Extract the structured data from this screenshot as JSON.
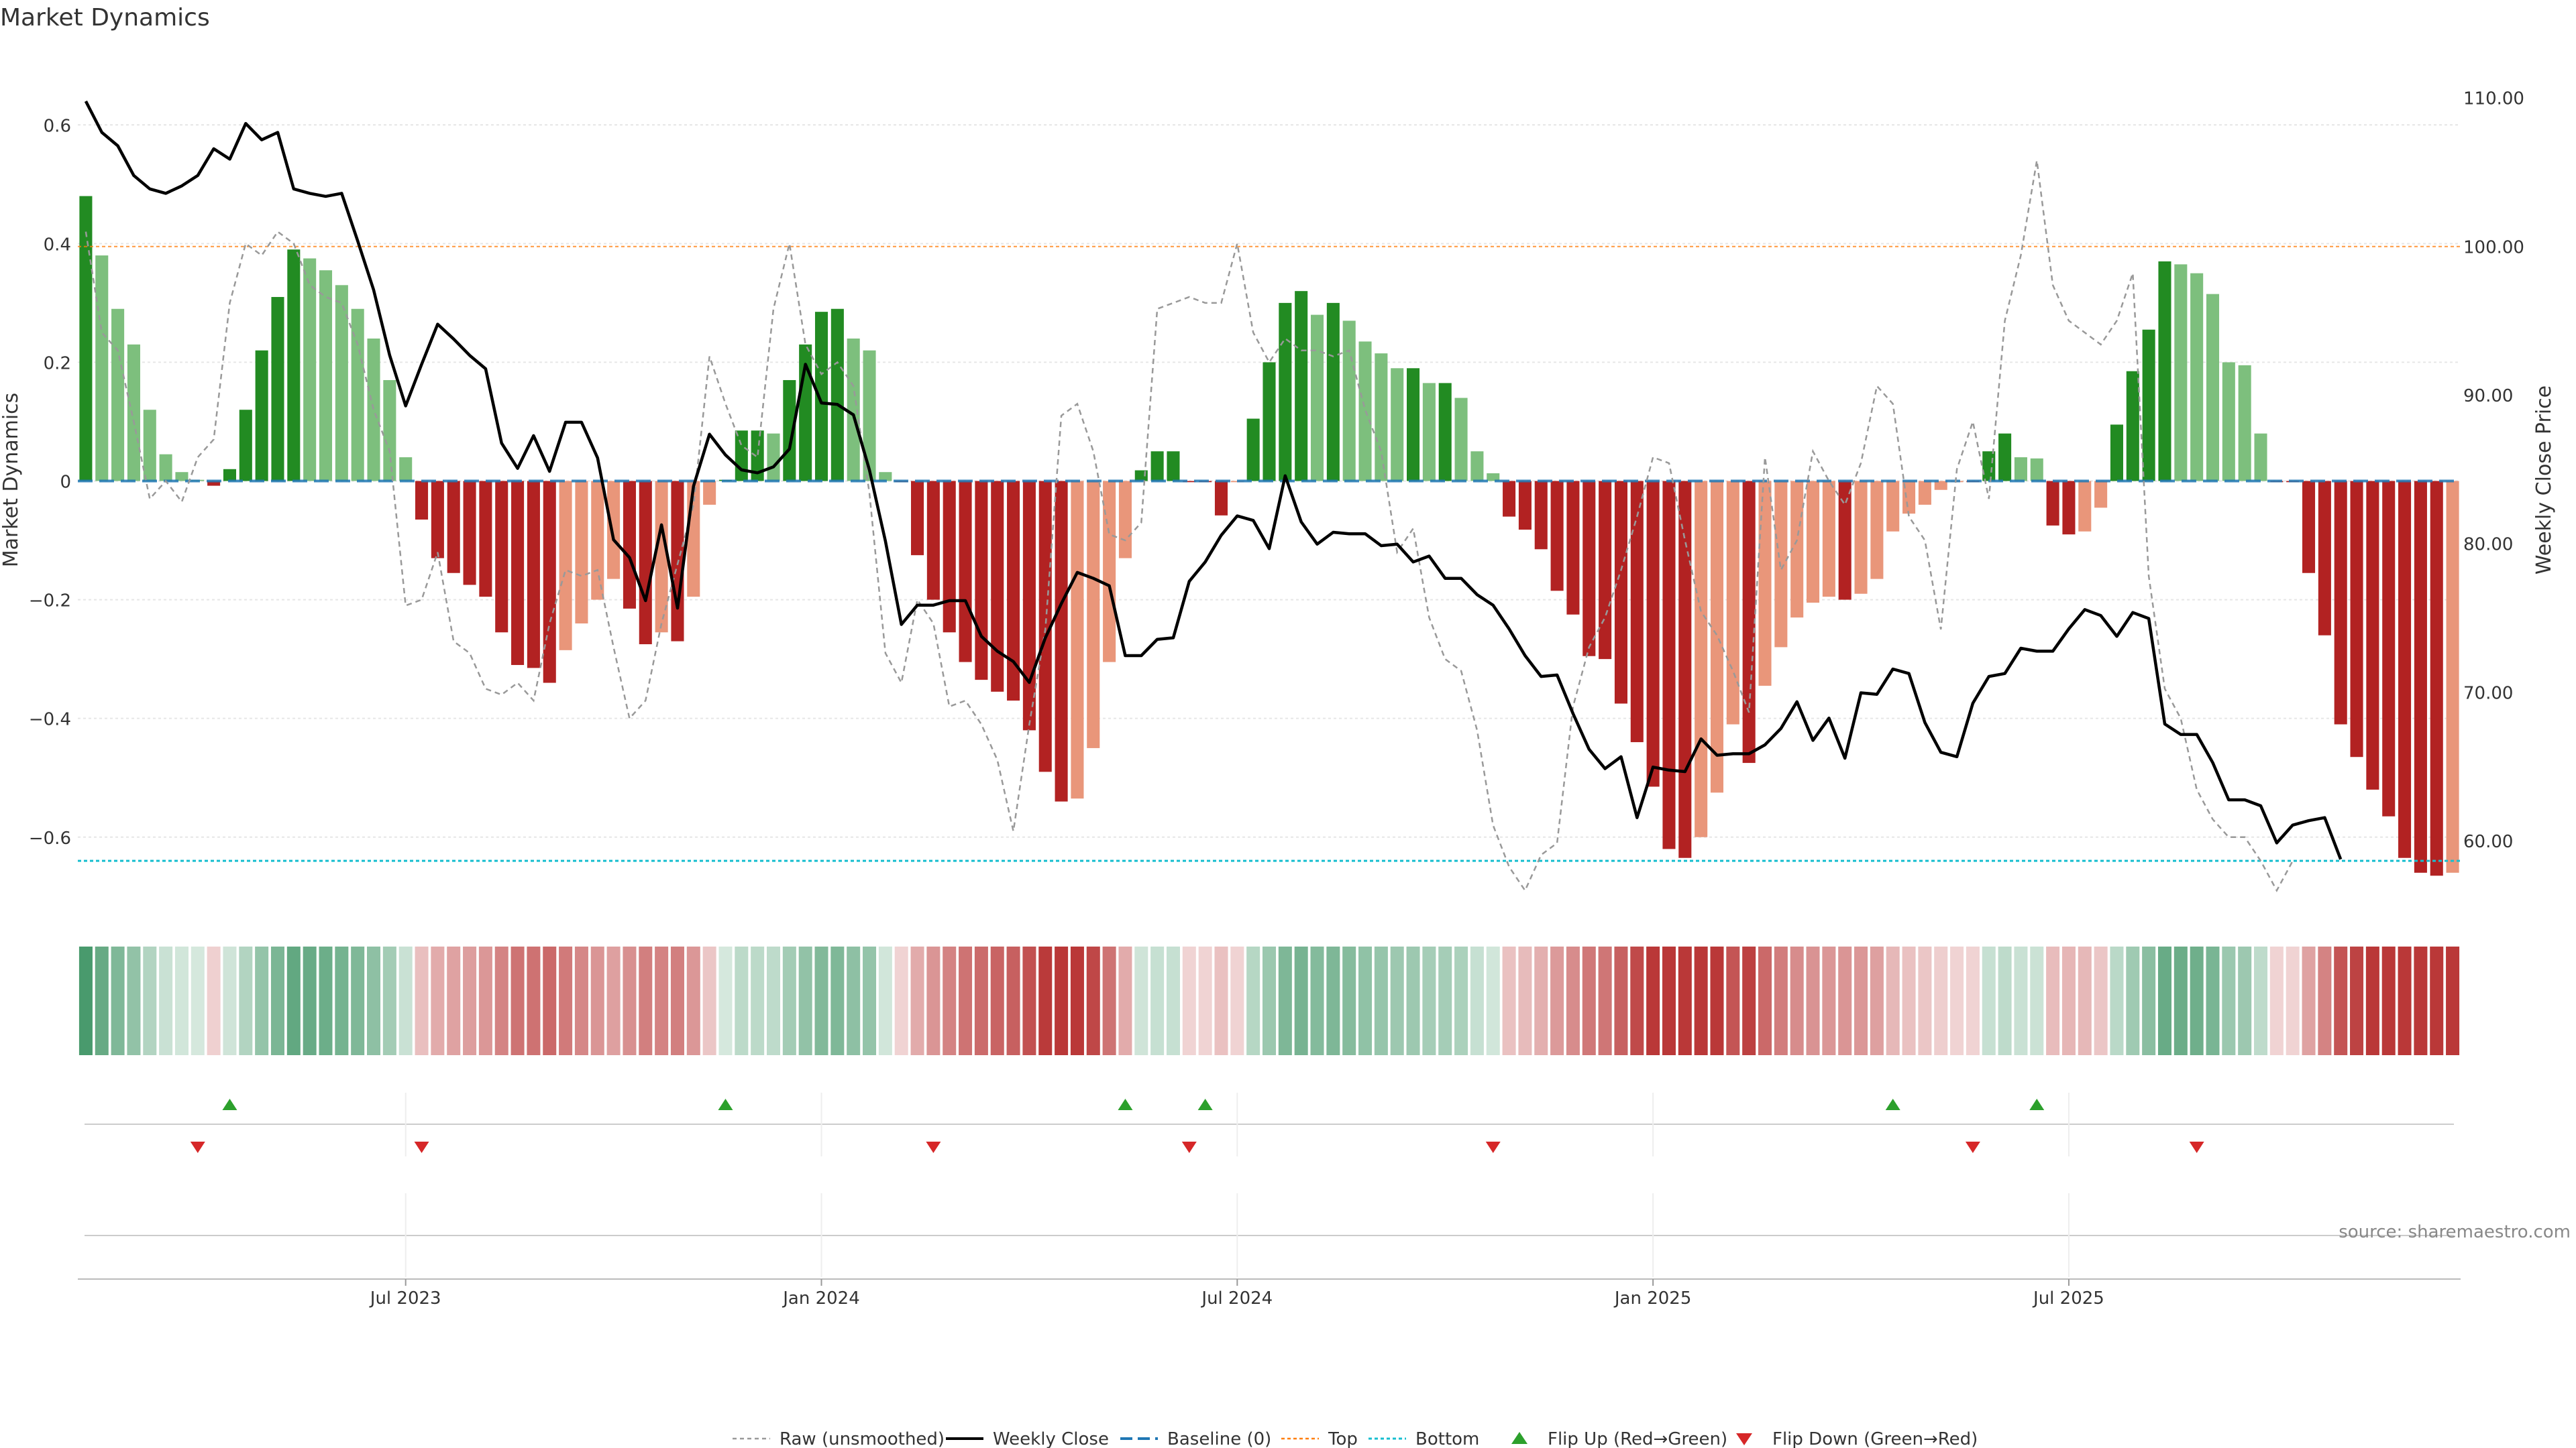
{
  "title": "Market Dynamics",
  "source": "source: sharemaestro.com",
  "chart_data": {
    "type": "bar",
    "title": "Market Dynamics",
    "ylabel": "Market Dynamics",
    "y2label": "Weekly Close Price",
    "ylim": [
      -0.72,
      0.72
    ],
    "y2lim": [
      55.5,
      113.0
    ],
    "yticks": [
      {
        "value": 0.6,
        "label": "0.6"
      },
      {
        "value": 0.4,
        "label": "0.4"
      },
      {
        "value": 0.2,
        "label": "0.2"
      },
      {
        "value": 0,
        "label": "0"
      },
      {
        "value": -0.2,
        "label": "−0.2"
      },
      {
        "value": -0.4,
        "label": "−0.4"
      },
      {
        "value": -0.6,
        "label": "−0.6"
      }
    ],
    "y2ticks": [
      {
        "value": 110,
        "label": "110.00"
      },
      {
        "value": 100,
        "label": "100.00"
      },
      {
        "value": 90,
        "label": "90.00"
      },
      {
        "value": 80,
        "label": "80.00"
      },
      {
        "value": 70,
        "label": "70.00"
      },
      {
        "value": 60,
        "label": "60.00"
      }
    ],
    "xticks": [
      {
        "week": 20,
        "label": "Jul 2023"
      },
      {
        "week": 46,
        "label": "Jan 2024"
      },
      {
        "week": 72,
        "label": "Jul 2024"
      },
      {
        "week": 98,
        "label": "Jan 2025"
      },
      {
        "week": 124,
        "label": "Jul 2025"
      }
    ],
    "top": 0.395,
    "bottom": -0.64,
    "baseline": 0,
    "colors": {
      "pos_strong": "#228b22",
      "pos_weak": "#7dbf7d",
      "neg_strong": "#b22222",
      "neg_weak": "#e9967a",
      "close": "#000000",
      "raw": "#999999",
      "baseline": "#1f77b4",
      "top": "#ff7f0e",
      "bottom": "#17becf",
      "flip_up": "#2ca02c",
      "flip_down": "#d62728",
      "heat_pos": "#2e8b57",
      "heat_neg": "#b22222"
    },
    "series": [
      {
        "name": "Market Dynamics",
        "values": [
          0.48,
          0.38,
          0.29,
          0.23,
          0.12,
          0.045,
          0.015,
          0.002,
          -0.008,
          0.02,
          0.12,
          0.22,
          0.31,
          0.39,
          0.375,
          0.355,
          0.33,
          0.29,
          0.24,
          0.17,
          0.04,
          -0.065,
          -0.13,
          -0.155,
          -0.175,
          -0.195,
          -0.255,
          -0.31,
          -0.315,
          -0.34,
          -0.285,
          -0.24,
          -0.2,
          -0.165,
          -0.215,
          -0.275,
          -0.255,
          -0.27,
          -0.195,
          -0.04,
          0.002,
          0.085,
          0.085,
          0.08,
          0.17,
          0.23,
          0.285,
          0.29,
          0.24,
          0.22,
          0.015,
          -0.002,
          -0.125,
          -0.2,
          -0.255,
          -0.305,
          -0.335,
          -0.355,
          -0.37,
          -0.42,
          -0.49,
          -0.54,
          -0.535,
          -0.45,
          -0.305,
          -0.13,
          0.018,
          0.05,
          0.05,
          -0.002,
          -0.002,
          -0.058,
          -0.002,
          0.105,
          0.2,
          0.3,
          0.32,
          0.28,
          0.3,
          0.27,
          0.235,
          0.215,
          0.19,
          0.19,
          0.165,
          0.165,
          0.14,
          0.05,
          0.013,
          -0.06,
          -0.082,
          -0.115,
          -0.185,
          -0.225,
          -0.295,
          -0.3,
          -0.375,
          -0.44,
          -0.515,
          -0.62,
          -0.635,
          -0.6,
          -0.525,
          -0.41,
          -0.475,
          -0.345,
          -0.28,
          -0.23,
          -0.205,
          -0.195,
          -0.2,
          -0.19,
          -0.165,
          -0.085,
          -0.055,
          -0.04,
          -0.015,
          -0.002,
          -0.002,
          0.05,
          0.08,
          0.04,
          0.038,
          -0.075,
          -0.09,
          -0.085,
          -0.045,
          0.095,
          0.185,
          0.255,
          0.37,
          0.365,
          0.35,
          0.315,
          0.2,
          0.195,
          0.08,
          -0.002,
          -0.002,
          -0.155,
          -0.26,
          -0.41,
          -0.465,
          -0.52,
          -0.565,
          -0.635,
          -0.66,
          -0.665,
          -0.66
        ]
      },
      {
        "name": "Raw (unsmoothed)",
        "values": [
          0.42,
          0.25,
          0.22,
          0.1,
          -0.03,
          0.0,
          -0.035,
          0.04,
          0.07,
          0.3,
          0.4,
          0.38,
          0.42,
          0.4,
          0.33,
          0.31,
          0.3,
          0.23,
          0.12,
          0.05,
          -0.21,
          -0.2,
          -0.12,
          -0.27,
          -0.29,
          -0.35,
          -0.36,
          -0.34,
          -0.37,
          -0.24,
          -0.15,
          -0.16,
          -0.15,
          -0.28,
          -0.4,
          -0.37,
          -0.24,
          -0.14,
          -0.04,
          0.21,
          0.13,
          0.06,
          0.04,
          0.29,
          0.4,
          0.23,
          0.18,
          0.2,
          0.16,
          -0.02,
          -0.29,
          -0.34,
          -0.2,
          -0.24,
          -0.38,
          -0.37,
          -0.41,
          -0.47,
          -0.59,
          -0.41,
          -0.25,
          0.11,
          0.13,
          0.05,
          -0.09,
          -0.1,
          -0.07,
          0.29,
          0.3,
          0.31,
          0.3,
          0.3,
          0.4,
          0.25,
          0.2,
          0.24,
          0.22,
          0.22,
          0.21,
          0.22,
          0.12,
          0.05,
          -0.12,
          -0.08,
          -0.23,
          -0.3,
          -0.32,
          -0.42,
          -0.58,
          -0.65,
          -0.69,
          -0.63,
          -0.61,
          -0.38,
          -0.28,
          -0.23,
          -0.15,
          -0.06,
          0.04,
          0.03,
          -0.1,
          -0.22,
          -0.26,
          -0.32,
          -0.39,
          0.04,
          -0.15,
          -0.1,
          0.05,
          0.0,
          -0.04,
          0.03,
          0.16,
          0.13,
          -0.06,
          -0.1,
          -0.25,
          0.02,
          0.1,
          -0.03,
          0.27,
          0.38,
          0.54,
          0.33,
          0.27,
          0.25,
          0.23,
          0.27,
          0.35,
          -0.16,
          -0.35,
          -0.4,
          -0.52,
          -0.57,
          -0.6,
          -0.6,
          -0.64,
          -0.69,
          -0.64
        ]
      },
      {
        "name": "Weekly Close",
        "values": [
          109.8,
          107.7,
          106.8,
          104.8,
          103.9,
          103.6,
          104.1,
          104.8,
          106.6,
          105.9,
          108.3,
          107.2,
          107.7,
          103.9,
          103.6,
          103.4,
          103.6,
          100.4,
          97.1,
          92.7,
          89.3,
          92.1,
          94.8,
          93.8,
          92.7,
          91.8,
          86.8,
          85.1,
          87.3,
          84.9,
          88.2,
          88.2,
          85.8,
          80.3,
          79.1,
          76.2,
          81.3,
          75.7,
          83.9,
          87.4,
          86.0,
          85.0,
          84.8,
          85.2,
          86.4,
          92.1,
          89.5,
          89.4,
          88.7,
          85.0,
          80.2,
          74.6,
          75.9,
          75.9,
          76.2,
          76.2,
          73.8,
          72.8,
          72.1,
          70.7,
          73.7,
          76.0,
          78.1,
          77.7,
          77.2,
          72.5,
          72.5,
          73.6,
          73.7,
          77.5,
          78.8,
          80.6,
          81.9,
          81.6,
          79.7,
          84.6,
          81.5,
          80.0,
          80.8,
          80.7,
          80.7,
          79.9,
          80.0,
          78.8,
          79.2,
          77.7,
          77.7,
          76.6,
          75.9,
          74.3,
          72.5,
          71.1,
          71.2,
          68.6,
          66.2,
          64.9,
          65.7,
          61.6,
          65.0,
          64.8,
          64.7,
          66.9,
          65.8,
          65.9,
          65.9,
          66.5,
          67.6,
          69.4,
          66.8,
          68.3,
          65.6,
          70.0,
          69.9,
          71.6,
          71.3,
          68.0,
          66.0,
          65.7,
          69.3,
          71.1,
          71.3,
          73.0,
          72.8,
          72.8,
          74.3,
          75.6,
          75.2,
          73.8,
          75.4,
          75.0,
          67.9,
          67.2,
          67.2,
          65.3,
          62.8,
          62.8,
          62.4,
          59.9,
          61.1,
          61.4,
          61.6,
          58.8
        ]
      }
    ],
    "flip_up_weeks": [
      9,
      40,
      65,
      70,
      113,
      122
    ],
    "flip_down_weeks": [
      7,
      21,
      53,
      69,
      88,
      118,
      132
    ],
    "legend": [
      {
        "key": "raw",
        "label": "Raw (unsmoothed)"
      },
      {
        "key": "close",
        "label": "Weekly Close"
      },
      {
        "key": "baseline",
        "label": "Baseline (0)"
      },
      {
        "key": "top",
        "label": "Top"
      },
      {
        "key": "bottom",
        "label": "Bottom"
      },
      {
        "key": "flip_up",
        "label": "Flip Up (Red→Green)"
      },
      {
        "key": "flip_down",
        "label": "Flip Down (Green→Red)"
      }
    ],
    "legend_position": "bottom-center",
    "grid": true
  }
}
